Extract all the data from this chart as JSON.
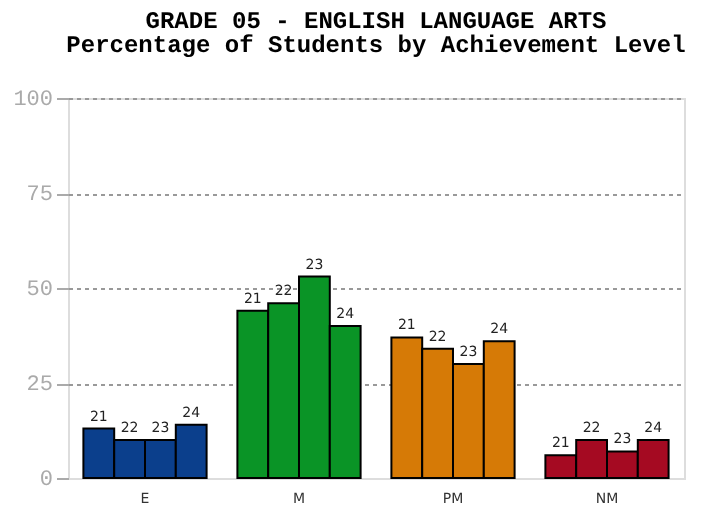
{
  "chart_data": {
    "type": "bar",
    "title": "GRADE 05 - ENGLISH LANGUAGE ARTS",
    "subtitle": "Percentage of Students by Achievement Level",
    "categories": [
      "E",
      "M",
      "PM",
      "NM"
    ],
    "series": [
      {
        "name": "21",
        "colors": [
          "#0b3f8c",
          "#0a9426",
          "#d67a06",
          "#a50a22"
        ],
        "values": [
          13,
          44,
          37,
          6
        ]
      },
      {
        "name": "22",
        "colors": [
          "#0b3f8c",
          "#0a9426",
          "#d67a06",
          "#a50a22"
        ],
        "values": [
          10,
          46,
          34,
          10
        ]
      },
      {
        "name": "23",
        "colors": [
          "#0b3f8c",
          "#0a9426",
          "#d67a06",
          "#a50a22"
        ],
        "values": [
          10,
          53,
          30,
          7
        ]
      },
      {
        "name": "24",
        "colors": [
          "#0b3f8c",
          "#0a9426",
          "#d67a06",
          "#a50a22"
        ],
        "values": [
          14,
          40,
          36,
          10
        ]
      }
    ],
    "ylim": [
      0,
      100
    ],
    "yticks": [
      0,
      25,
      50,
      75,
      100
    ],
    "grid": "y"
  }
}
